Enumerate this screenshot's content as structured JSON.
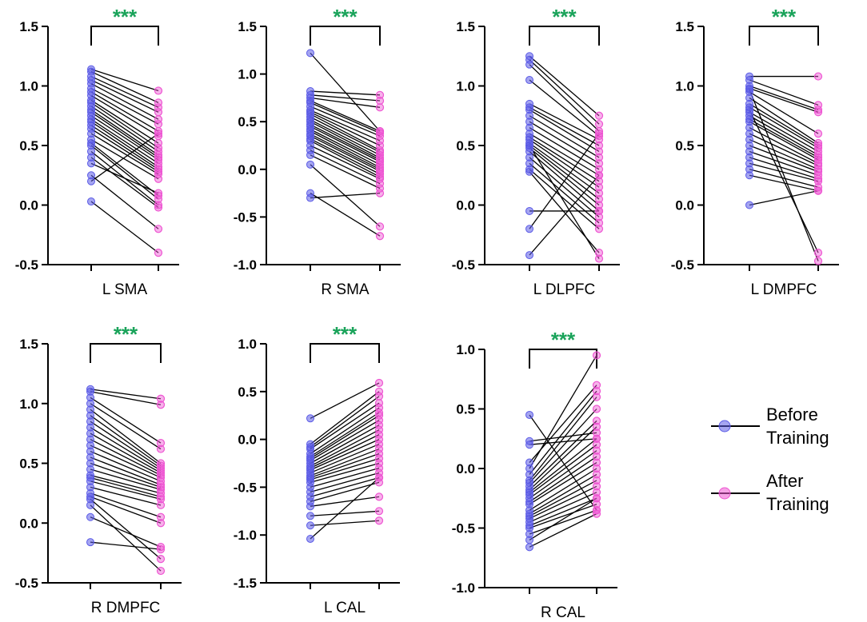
{
  "chart_data": [
    {
      "type": "paired-dot-line",
      "category": "L SMA",
      "significance": "***",
      "ylim": [
        -0.5,
        1.5
      ],
      "yticks": [
        "-0.5",
        "0.0",
        "0.5",
        "1.0",
        "1.5"
      ],
      "pairs": [
        [
          1.14,
          0.96
        ],
        [
          1.12,
          0.86
        ],
        [
          1.08,
          0.82
        ],
        [
          1.05,
          0.78
        ],
        [
          1.02,
          0.72
        ],
        [
          0.98,
          0.68
        ],
        [
          0.95,
          0.62
        ],
        [
          0.92,
          0.58
        ],
        [
          0.88,
          0.52
        ],
        [
          0.86,
          0.48
        ],
        [
          0.83,
          0.45
        ],
        [
          0.8,
          0.42
        ],
        [
          0.78,
          0.4
        ],
        [
          0.75,
          0.38
        ],
        [
          0.72,
          0.35
        ],
        [
          0.7,
          0.32
        ],
        [
          0.67,
          0.3
        ],
        [
          0.64,
          0.28
        ],
        [
          0.6,
          0.26
        ],
        [
          0.55,
          0.22
        ],
        [
          0.52,
          0.08
        ],
        [
          0.5,
          0.05
        ],
        [
          0.45,
          0.0
        ],
        [
          0.4,
          -0.02
        ],
        [
          0.35,
          0.1
        ],
        [
          0.25,
          -0.2
        ],
        [
          0.2,
          0.6
        ],
        [
          0.03,
          -0.4
        ]
      ]
    },
    {
      "type": "paired-dot-line",
      "category": "R SMA",
      "significance": "***",
      "ylim": [
        -1.0,
        1.5
      ],
      "yticks": [
        "-1.0",
        "-0.5",
        "0.0",
        "0.5",
        "1.0",
        "1.5"
      ],
      "pairs": [
        [
          1.22,
          0.4
        ],
        [
          0.82,
          0.78
        ],
        [
          0.78,
          0.72
        ],
        [
          0.75,
          0.65
        ],
        [
          0.72,
          0.4
        ],
        [
          0.7,
          0.38
        ],
        [
          0.66,
          0.35
        ],
        [
          0.62,
          0.3
        ],
        [
          0.6,
          0.25
        ],
        [
          0.58,
          0.2
        ],
        [
          0.55,
          0.18
        ],
        [
          0.52,
          0.15
        ],
        [
          0.5,
          0.12
        ],
        [
          0.47,
          0.1
        ],
        [
          0.45,
          0.08
        ],
        [
          0.42,
          0.05
        ],
        [
          0.4,
          0.02
        ],
        [
          0.37,
          0.0
        ],
        [
          0.35,
          -0.02
        ],
        [
          0.32,
          -0.05
        ],
        [
          0.3,
          -0.08
        ],
        [
          0.25,
          -0.1
        ],
        [
          0.2,
          -0.15
        ],
        [
          0.15,
          -0.2
        ],
        [
          0.05,
          -0.6
        ],
        [
          -0.25,
          -0.7
        ],
        [
          -0.3,
          -0.25
        ]
      ]
    },
    {
      "type": "paired-dot-line",
      "category": "L DLPFC",
      "significance": "***",
      "ylim": [
        -0.5,
        1.5
      ],
      "yticks": [
        "-0.5",
        "0.0",
        "0.5",
        "1.0",
        "1.5"
      ],
      "pairs": [
        [
          1.25,
          0.75
        ],
        [
          1.22,
          0.68
        ],
        [
          1.18,
          0.62
        ],
        [
          1.05,
          0.58
        ],
        [
          0.85,
          0.55
        ],
        [
          0.82,
          0.5
        ],
        [
          0.8,
          0.45
        ],
        [
          0.75,
          0.4
        ],
        [
          0.7,
          0.35
        ],
        [
          0.65,
          0.3
        ],
        [
          0.6,
          0.25
        ],
        [
          0.57,
          0.2
        ],
        [
          0.55,
          0.15
        ],
        [
          0.52,
          0.1
        ],
        [
          0.5,
          0.05
        ],
        [
          0.48,
          0.0
        ],
        [
          0.45,
          -0.05
        ],
        [
          0.4,
          -0.1
        ],
        [
          0.35,
          -0.15
        ],
        [
          0.3,
          -0.2
        ],
        [
          0.28,
          -0.4
        ],
        [
          0.5,
          -0.45
        ],
        [
          -0.05,
          -0.05
        ],
        [
          -0.2,
          0.6
        ],
        [
          -0.42,
          0.25
        ]
      ]
    },
    {
      "type": "paired-dot-line",
      "category": "L DMPFC",
      "significance": "***",
      "ylim": [
        -0.5,
        1.5
      ],
      "yticks": [
        "-0.5",
        "0.0",
        "0.5",
        "1.0",
        "1.5"
      ],
      "pairs": [
        [
          1.08,
          1.08
        ],
        [
          1.05,
          0.84
        ],
        [
          1.0,
          0.8
        ],
        [
          0.98,
          0.78
        ],
        [
          0.95,
          0.6
        ],
        [
          0.9,
          0.52
        ],
        [
          0.85,
          0.5
        ],
        [
          0.82,
          0.48
        ],
        [
          0.78,
          0.45
        ],
        [
          0.75,
          0.42
        ],
        [
          0.72,
          0.4
        ],
        [
          0.7,
          0.38
        ],
        [
          0.65,
          0.35
        ],
        [
          0.6,
          0.33
        ],
        [
          0.55,
          0.3
        ],
        [
          0.5,
          0.28
        ],
        [
          0.45,
          0.25
        ],
        [
          0.4,
          0.22
        ],
        [
          0.35,
          0.2
        ],
        [
          0.3,
          0.15
        ],
        [
          0.25,
          0.12
        ],
        [
          0.8,
          -0.4
        ],
        [
          0.97,
          -0.47
        ],
        [
          0.0,
          0.12
        ]
      ]
    },
    {
      "type": "paired-dot-line",
      "category": "R DMPFC",
      "significance": "***",
      "ylim": [
        -0.5,
        1.5
      ],
      "yticks": [
        "-0.5",
        "0.0",
        "0.5",
        "1.0",
        "1.5"
      ],
      "pairs": [
        [
          1.12,
          1.04
        ],
        [
          1.1,
          0.99
        ],
        [
          1.05,
          0.67
        ],
        [
          1.0,
          0.62
        ],
        [
          0.95,
          0.5
        ],
        [
          0.9,
          0.48
        ],
        [
          0.85,
          0.46
        ],
        [
          0.8,
          0.44
        ],
        [
          0.75,
          0.42
        ],
        [
          0.7,
          0.4
        ],
        [
          0.65,
          0.38
        ],
        [
          0.6,
          0.35
        ],
        [
          0.55,
          0.32
        ],
        [
          0.5,
          0.3
        ],
        [
          0.45,
          0.28
        ],
        [
          0.4,
          0.25
        ],
        [
          0.38,
          0.22
        ],
        [
          0.35,
          0.2
        ],
        [
          0.3,
          0.15
        ],
        [
          0.25,
          0.05
        ],
        [
          0.22,
          0.0
        ],
        [
          0.2,
          -0.3
        ],
        [
          0.15,
          -0.4
        ],
        [
          0.05,
          -0.2
        ],
        [
          -0.16,
          -0.22
        ]
      ]
    },
    {
      "type": "paired-dot-line",
      "category": "L CAL",
      "significance": "***",
      "ylim": [
        -1.5,
        1.0
      ],
      "yticks": [
        "-1.5",
        "-1.0",
        "-0.5",
        "0.0",
        "0.5",
        "1.0"
      ],
      "pairs": [
        [
          0.22,
          0.59
        ],
        [
          -0.05,
          0.5
        ],
        [
          -0.08,
          0.45
        ],
        [
          -0.1,
          0.38
        ],
        [
          -0.15,
          0.33
        ],
        [
          -0.18,
          0.28
        ],
        [
          -0.2,
          0.25
        ],
        [
          -0.22,
          0.2
        ],
        [
          -0.25,
          0.15
        ],
        [
          -0.28,
          0.1
        ],
        [
          -0.3,
          0.05
        ],
        [
          -0.32,
          0.0
        ],
        [
          -0.35,
          -0.05
        ],
        [
          -0.38,
          -0.1
        ],
        [
          -0.4,
          -0.15
        ],
        [
          -0.42,
          -0.2
        ],
        [
          -0.45,
          -0.25
        ],
        [
          -0.5,
          -0.3
        ],
        [
          -0.55,
          -0.35
        ],
        [
          -0.6,
          -0.4
        ],
        [
          -0.65,
          -0.45
        ],
        [
          -0.7,
          -0.6
        ],
        [
          -0.8,
          -0.75
        ],
        [
          -0.9,
          -0.85
        ],
        [
          -1.04,
          -0.4
        ]
      ]
    },
    {
      "type": "paired-dot-line",
      "category": "R CAL",
      "significance": "***",
      "ylim": [
        -1.0,
        1.0
      ],
      "yticks": [
        "-1.0",
        "-0.5",
        "0.0",
        "0.5",
        "1.0"
      ],
      "pairs": [
        [
          0.45,
          -0.35
        ],
        [
          0.23,
          0.3
        ],
        [
          0.2,
          0.25
        ],
        [
          0.05,
          0.7
        ],
        [
          0.0,
          0.95
        ],
        [
          -0.05,
          0.65
        ],
        [
          -0.1,
          0.6
        ],
        [
          -0.12,
          0.5
        ],
        [
          -0.15,
          0.4
        ],
        [
          -0.18,
          0.35
        ],
        [
          -0.2,
          0.25
        ],
        [
          -0.22,
          0.2
        ],
        [
          -0.25,
          0.15
        ],
        [
          -0.28,
          0.1
        ],
        [
          -0.3,
          0.05
        ],
        [
          -0.35,
          0.0
        ],
        [
          -0.38,
          -0.05
        ],
        [
          -0.4,
          -0.1
        ],
        [
          -0.42,
          -0.15
        ],
        [
          -0.45,
          -0.2
        ],
        [
          -0.48,
          -0.25
        ],
        [
          -0.5,
          -0.3
        ],
        [
          -0.55,
          -0.35
        ],
        [
          -0.6,
          -0.25
        ],
        [
          -0.66,
          -0.38
        ]
      ]
    }
  ],
  "legend": [
    {
      "label_line1": "Before",
      "label_line2": "Training",
      "color": "#5b5be6"
    },
    {
      "label_line1": "After",
      "label_line2": "Training",
      "color": "#ee55d2"
    }
  ],
  "colors": {
    "before": "#5b5be6",
    "after": "#ee55d2",
    "significance": "#1aa35a",
    "line": "#000000"
  }
}
